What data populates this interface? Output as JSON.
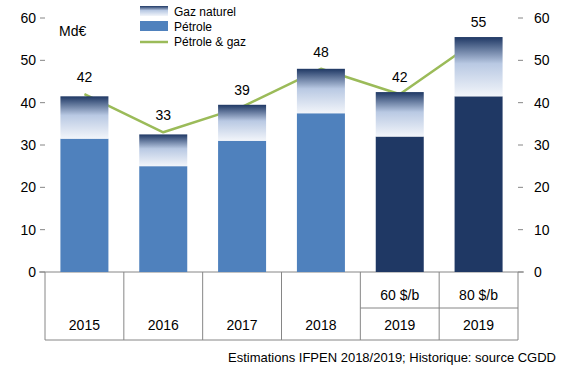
{
  "chart_data": {
    "type": "bar",
    "stacked": true,
    "grid": false,
    "legend": "top",
    "unit_label": "Md€",
    "source": "Estimations IFPEN 2018/2019; Historique: source CGDD",
    "categories": [
      "2015",
      "2016",
      "2017",
      "2018",
      "2019",
      "2019"
    ],
    "category_sublabels": [
      null,
      null,
      null,
      null,
      "60 $/b",
      "80 $/b"
    ],
    "ylim": [
      0,
      60
    ],
    "yticks": [
      0,
      10,
      20,
      30,
      40,
      50,
      60
    ],
    "y2lim": [
      0,
      60
    ],
    "y2ticks": [
      0,
      10,
      20,
      30,
      40,
      50,
      60
    ],
    "series": [
      {
        "name": "Pétrole",
        "type": "bar",
        "color": "#4f81bd",
        "colors": [
          "#4f81bd",
          "#4f81bd",
          "#4f81bd",
          "#4f81bd",
          "#1f3864",
          "#1f3864"
        ],
        "values": [
          31.5,
          25,
          31,
          37.5,
          32,
          41.5
        ]
      },
      {
        "name": "Gaz naturel",
        "type": "bar",
        "color": "#1f3864",
        "values": [
          10,
          7.5,
          8.5,
          10.5,
          10.5,
          14
        ]
      },
      {
        "name": "Pétrole & gaz",
        "type": "line",
        "color": "#9bbb59",
        "axis": "y2",
        "data_labels": true,
        "values": [
          42,
          33,
          39,
          48,
          42,
          55
        ]
      }
    ]
  }
}
